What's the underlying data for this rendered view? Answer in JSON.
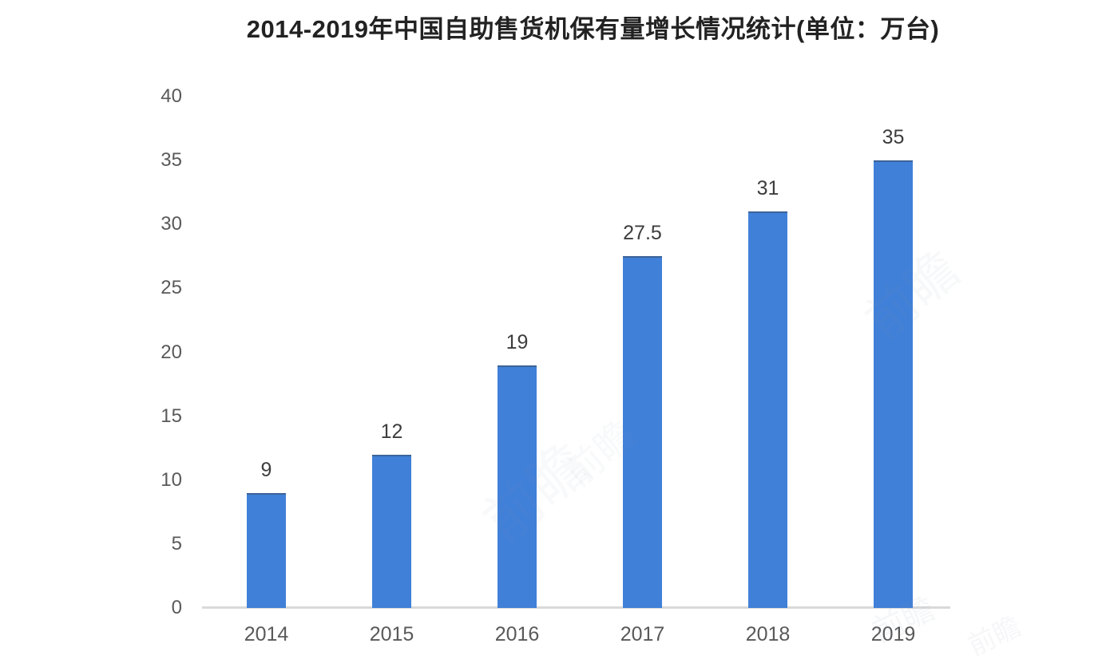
{
  "chart_data": {
    "type": "bar",
    "title": "2014-2019年中国自助售货机保有量增长情况统计(单位：万台)",
    "unit": "万台",
    "categories": [
      "2014",
      "2015",
      "2016",
      "2017",
      "2018",
      "2019"
    ],
    "values": [
      9,
      12,
      19,
      27.5,
      31,
      35
    ],
    "data_labels": [
      "9",
      "12",
      "19",
      "27.5",
      "31",
      "35"
    ],
    "xlabel": "",
    "ylabel": "",
    "ylim": [
      0,
      40
    ],
    "yticks": [
      0,
      5,
      10,
      15,
      20,
      25,
      30,
      35,
      40
    ],
    "grid": "off",
    "legend": "none",
    "bar_color": "#4080D8",
    "tick_label_color": "#595959",
    "data_label_color": "#3d3d3d",
    "title_color": "#222222",
    "axis_line_color": "#d9d9d9"
  },
  "watermark": {
    "text": "前瞻"
  }
}
